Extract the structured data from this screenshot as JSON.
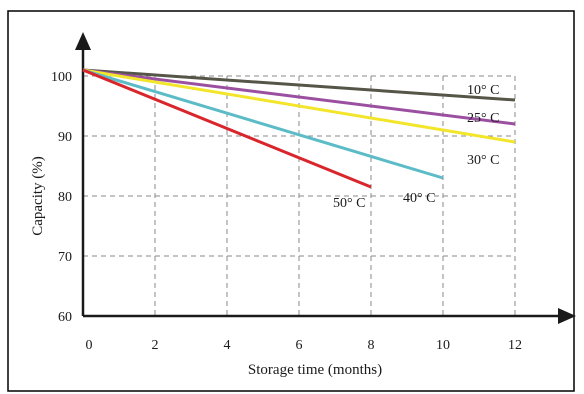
{
  "chart_data": {
    "type": "line",
    "title": "",
    "xlabel": "Storage time (months)",
    "ylabel": "Capacity (%)",
    "xlim": [
      0,
      12
    ],
    "ylim": [
      60,
      100
    ],
    "x_ticks": [
      "0",
      "2",
      "4",
      "6",
      "8",
      "10",
      "12"
    ],
    "y_ticks": [
      "60",
      "70",
      "80",
      "90",
      "100"
    ],
    "grid": true,
    "grid_style": "dashed",
    "series": [
      {
        "name": "10° C",
        "label_text": "10°  C",
        "color": "#555548",
        "x": [
          0,
          12
        ],
        "y": [
          101,
          96
        ]
      },
      {
        "name": "25° C",
        "label_text": "25°  C",
        "color": "#9b4fa1",
        "x": [
          0,
          12
        ],
        "y": [
          101,
          92
        ]
      },
      {
        "name": "30° C",
        "label_text": "30°  C",
        "color": "#f2e52a",
        "x": [
          0,
          12
        ],
        "y": [
          101,
          89
        ]
      },
      {
        "name": "40° C",
        "label_text": "40°  C",
        "color": "#5bbcc8",
        "x": [
          0,
          10
        ],
        "y": [
          101,
          83
        ]
      },
      {
        "name": "50° C",
        "label_text": "50°  C",
        "color": "#d9262c",
        "x": [
          0,
          8
        ],
        "y": [
          101,
          81.5
        ]
      }
    ]
  }
}
